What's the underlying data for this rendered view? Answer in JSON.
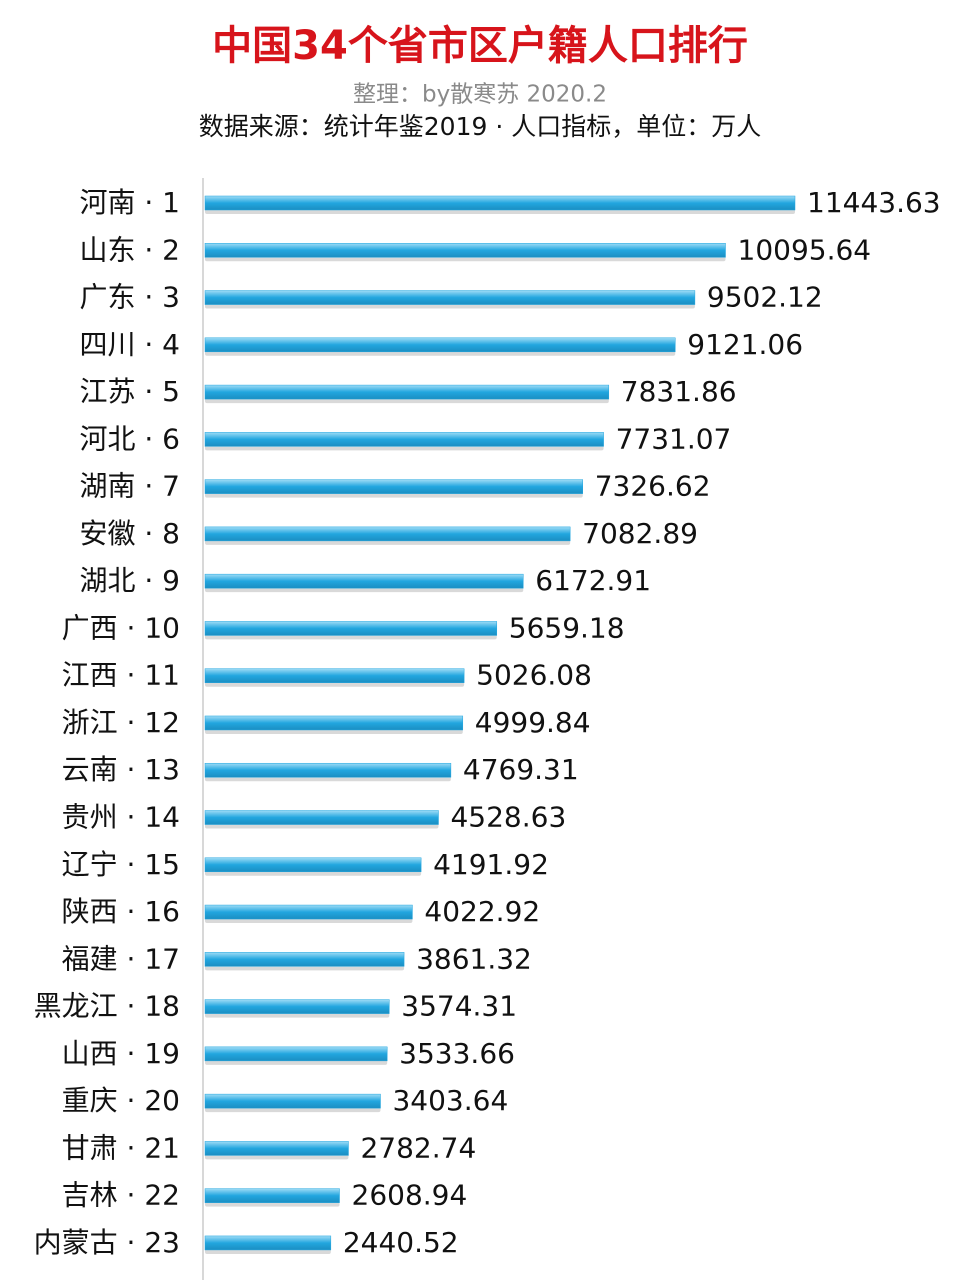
{
  "chart_data": {
    "type": "bar",
    "orientation": "horizontal",
    "title": "中国34个省市区户籍人口排行",
    "subtitle": "整理：by散寒苏 2020.2",
    "source": "数据来源：统计年鉴2019 · 人口指标，单位：万人",
    "categories": [
      "河南 · 1",
      "山东 · 2",
      "广东 · 3",
      "四川 · 4",
      "江苏 · 5",
      "河北 · 6",
      "湖南 · 7",
      "安徽 · 8",
      "湖北 · 9",
      "广西 · 10",
      "江西 · 11",
      "浙江 · 12",
      "云南 · 13",
      "贵州 · 14",
      "辽宁 · 15",
      "陕西 · 16",
      "福建 · 17",
      "黑龙江 · 18",
      "山西 · 19",
      "重庆 · 20",
      "甘肃 · 21",
      "吉林 · 22",
      "内蒙古 · 23"
    ],
    "values": [
      11443.63,
      10095.64,
      9502.12,
      9121.06,
      7831.86,
      7731.07,
      7326.62,
      7082.89,
      6172.91,
      5659.18,
      5026.08,
      4999.84,
      4769.31,
      4528.63,
      4191.92,
      4022.92,
      3861.32,
      3574.31,
      3533.66,
      3403.64,
      2782.74,
      2608.94,
      2440.52
    ],
    "color": "#22a6df"
  }
}
